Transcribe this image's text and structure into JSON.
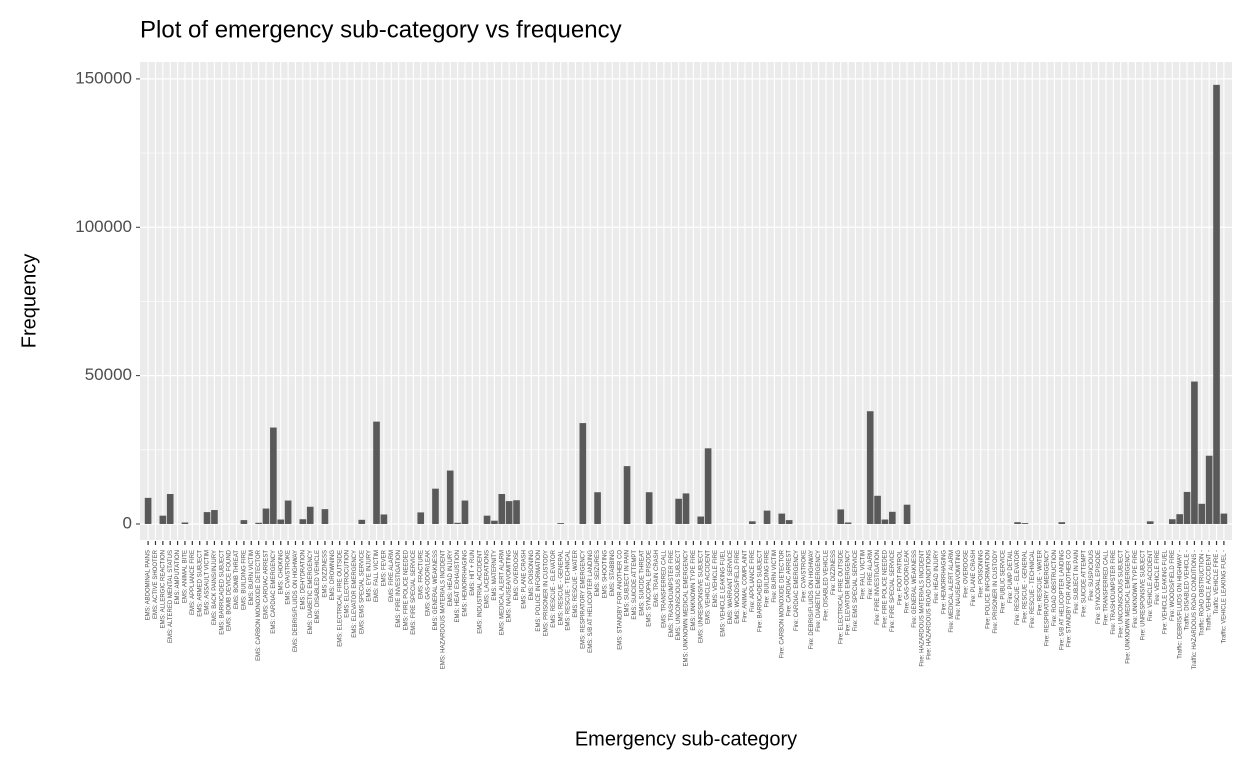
{
  "chart_data": {
    "type": "bar",
    "title": "Plot of emergency sub-category vs frequency",
    "x_label": "Emergency sub-category",
    "y_label": "Frequency",
    "color": "#595959",
    "grid": true,
    "ylim": [
      -5400,
      155700
    ],
    "yticks": [
      0,
      50000,
      100000,
      150000
    ],
    "categories": [
      "EMS: ABDOMINAL PAINS",
      "EMS: ACTIVE SHOOTER",
      "EMS: ALLERGIC REACTION",
      "EMS: ALTERED MENTAL STATUS",
      "EMS: AMPUTATION",
      "EMS: ANIMAL BITE",
      "EMS: APPLIANCE FIRE",
      "EMS: ARMED SUBJECT",
      "EMS: ASSAULT VICTIM",
      "EMS: BACK PAINS/INJURY",
      "EMS: BARRICADED SUBJECT",
      "EMS: BOMB DEVICE FOUND",
      "EMS: BOMB THREAT",
      "EMS: BUILDING FIRE",
      "EMS: BURN VICTIM",
      "EMS: CARBON MONOXIDE DETECTOR",
      "EMS: CARDIAC ARREST",
      "EMS: CARDIAC EMERGENCY",
      "EMS: CHOKING",
      "EMS: CVA/STROKE",
      "EMS: DEBRIS/FLUIDS ON HIGHWAY",
      "EMS: DEHYDRATION",
      "EMS: DIABETIC EMERGENCY",
      "EMS: DISABLED VEHICLE",
      "EMS: DIZZINESS",
      "EMS: DROWNING",
      "EMS: ELECTRICAL FIRE OUTSIDE",
      "EMS: ELECTROCUTION",
      "EMS: ELEVATOR EMERGENCY",
      "EMS: EMS SPECIAL SERVICE",
      "EMS: EYE INJURY",
      "EMS: FALL VICTIM",
      "EMS: FEVER",
      "EMS: FIRE ALARM",
      "EMS: FIRE INVESTIGATION",
      "EMS: FIRE POLICE NEEDED",
      "EMS: FIRE SPECIAL SERVICE",
      "EMS: FRACTURE",
      "EMS: GAS-ODOR/LEAK",
      "EMS: GENERAL WEAKNESS",
      "EMS: HAZARDOUS MATERIALS INCIDENT",
      "EMS: HEAD INJURY",
      "EMS: HEAT EXHAUSTION",
      "EMS: HEMORRHAGING",
      "EMS: HIT + RUN",
      "EMS: INDUSTRIAL ACCIDENT",
      "EMS: LACERATIONS",
      "EMS: MATERNITY",
      "EMS: MEDICAL ALERT ALARM",
      "EMS: NAUSEA/VOMITING",
      "EMS: OVERDOSE",
      "EMS: PLANE CRASH",
      "EMS: POISONING",
      "EMS: POLICE INFORMATION",
      "EMS: PRISONER IN CUSTODY",
      "EMS: RESCUE - ELEVATOR",
      "EMS: RESCUE - GENERAL",
      "EMS: RESCUE - TECHNICAL",
      "EMS: RESCUE - WATER",
      "EMS: RESPIRATORY EMERGENCY",
      "EMS: S/B AT HELICOPTER LANDING",
      "EMS: SEIZURES",
      "EMS: SHOOTING",
      "EMS: STABBING",
      "EMS: STANDBY FOR ANOTHER CO",
      "EMS: SUBJECT IN PAIN",
      "EMS: SUICIDE ATTEMPT",
      "EMS: SUICIDE THREAT",
      "EMS: SYNCOPAL EPISODE",
      "EMS: TRAIN CRASH",
      "EMS: TRANSFERRED CALL",
      "EMS: TRASH/DUMPSTER FIRE",
      "EMS: UNCONSCIOUS SUBJECT",
      "EMS: UNKNOWN MEDICAL EMERGENCY",
      "EMS: UNKNOWN TYPE FIRE",
      "EMS: UNRESPONSIVE SUBJECT",
      "EMS: VEHICLE ACCIDENT",
      "EMS: VEHICLE FIRE",
      "EMS: VEHICLE LEAKING FUEL",
      "EMS: WARRANT SERVICE",
      "EMS: WOODS/FIELD FIRE",
      "Fire: ANIMAL COMPLAINT",
      "Fire: APPLIANCE FIRE",
      "Fire: BARRICADED SUBJECT",
      "Fire: BUILDING FIRE",
      "Fire: BURN VICTIM",
      "Fire: CARBON MONOXIDE DETECTOR",
      "Fire: CARDIAC ARREST",
      "Fire: CARDIAC EMERGENCY",
      "Fire: CVA/STROKE",
      "Fire: DEBRIS/FLUIDS ON HIGHWAY",
      "Fire: DIABETIC EMERGENCY",
      "Fire: DISABLED VEHICLE",
      "Fire: DIZZINESS",
      "Fire: ELECTRICAL FIRE OUTSIDE",
      "Fire: ELEVATOR EMERGENCY",
      "Fire: EMS SPECIAL SERVICE",
      "Fire: FALL VICTIM",
      "Fire: FIRE ALARM",
      "Fire: FIRE INVESTIGATION",
      "Fire: FIRE POLICE NEEDED",
      "Fire: FIRE SPECIAL SERVICE",
      "Fire: FOOT PATROL",
      "Fire: GAS-ODOR/LEAK",
      "Fire: GENERAL WEAKNESS",
      "Fire: HAZARDOUS MATERIALS INCIDENT",
      "Fire: HAZARDOUS ROAD CONDITIONS",
      "Fire: HEAD INJURY",
      "Fire: HEMORRHAGING",
      "Fire: MEDICAL ALERT ALARM",
      "Fire: NAUSEA/VOMITING",
      "Fire: OVERDOSE",
      "Fire: PLANE CRASH",
      "Fire: POISONING",
      "Fire: POLICE INFORMATION",
      "Fire: PRISONER IN CUSTODY",
      "Fire: PUBLIC SERVICE",
      "Fire: PUMP DETAIL",
      "Fire: RESCUE - ELEVATOR",
      "Fire: RESCUE - GENERAL",
      "Fire: RESCUE - TECHNICAL",
      "Fire: RESCUE - WATER",
      "Fire: RESPIRATORY EMERGENCY",
      "Fire: ROAD OBSTRUCTION",
      "Fire: S/B AT HELICOPTER LANDING",
      "Fire: STANDBY FOR ANOTHER CO",
      "Fire: SUBJECT IN PAIN",
      "Fire: SUICIDE ATTEMPT",
      "Fire: SUSPICIOUS",
      "Fire: SYNCOPAL EPISODE",
      "Fire: TRANSFERRED CALL",
      "Fire: TRASH/DUMPSTER FIRE",
      "Fire: UNCONSCIOUS SUBJECT",
      "Fire: UNKNOWN MEDICAL EMERGENCY",
      "Fire: UNKNOWN TYPE FIRE",
      "Fire: UNRESPONSIVE SUBJECT",
      "Fire: VEHICLE ACCIDENT",
      "Fire: VEHICLE FIRE",
      "Fire: VEHICLE LEAKING FUEL",
      "Fire: WOODS/FIELD FIRE",
      "Traffic: DEBRIS/FLUIDS ON HIGHWAY -",
      "Traffic: DISABLED VEHICLE -",
      "Traffic: HAZARDOUS ROAD CONDITIONS -",
      "Traffic: ROAD OBSTRUCTION -",
      "Traffic: VEHICLE ACCIDENT -",
      "Traffic: VEHICLE FIRE -",
      "Traffic: VEHICLE LEAKING FUEL -"
    ],
    "values": [
      8800,
      0,
      2800,
      10100,
      0,
      500,
      0,
      0,
      4000,
      4700,
      0,
      0,
      0,
      1300,
      0,
      400,
      5200,
      32500,
      1500,
      7900,
      0,
      1600,
      5800,
      0,
      5000,
      0,
      0,
      0,
      0,
      1400,
      0,
      34500,
      3200,
      0,
      0,
      0,
      0,
      3900,
      0,
      11900,
      0,
      18000,
      400,
      7900,
      0,
      0,
      2800,
      1100,
      10100,
      7700,
      8000,
      0,
      0,
      0,
      0,
      0,
      300,
      0,
      0,
      34000,
      0,
      10700,
      0,
      0,
      0,
      19500,
      0,
      0,
      10700,
      0,
      0,
      0,
      8500,
      10300,
      0,
      2500,
      25500,
      0,
      0,
      0,
      0,
      0,
      900,
      0,
      4500,
      0,
      3500,
      1300,
      0,
      0,
      0,
      0,
      0,
      0,
      4900,
      500,
      0,
      0,
      38000,
      9500,
      1500,
      4100,
      0,
      6500,
      0,
      0,
      0,
      0,
      0,
      0,
      0,
      0,
      0,
      0,
      0,
      0,
      0,
      0,
      600,
      300,
      0,
      0,
      0,
      0,
      600,
      0,
      0,
      0,
      0,
      0,
      0,
      0,
      0,
      0,
      0,
      0,
      900,
      0,
      0,
      1600,
      3300,
      10800,
      48000,
      6800,
      23000,
      148000,
      3500
    ]
  }
}
